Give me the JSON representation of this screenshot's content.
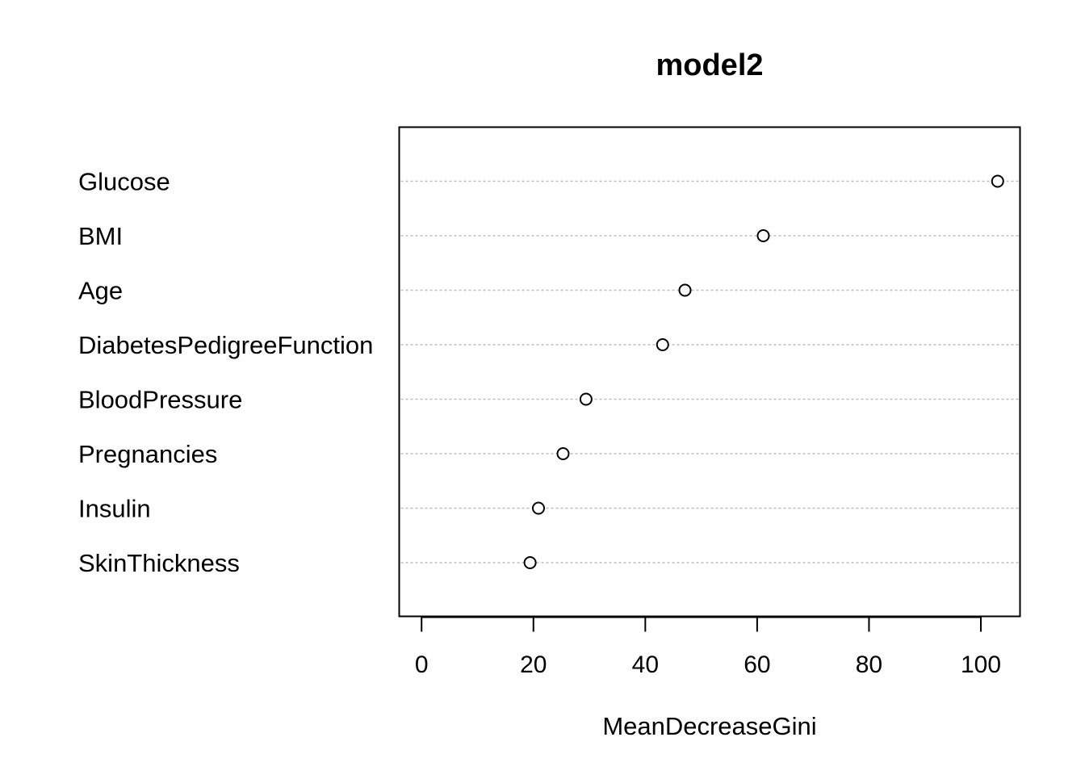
{
  "chart_data": {
    "type": "scatter",
    "title": "model2",
    "xlabel": "MeanDecreaseGini",
    "ylabel": "",
    "xlim": [
      -4,
      107
    ],
    "xticks": [
      0,
      20,
      40,
      60,
      80,
      100
    ],
    "grid": "horizontal dotted",
    "categories": [
      "Glucose",
      "BMI",
      "Age",
      "DiabetesPedigreeFunction",
      "BloodPressure",
      "Pregnancies",
      "Insulin",
      "SkinThickness"
    ],
    "values": [
      103.0,
      61.1,
      47.1,
      43.1,
      29.4,
      25.3,
      20.9,
      19.4
    ]
  }
}
